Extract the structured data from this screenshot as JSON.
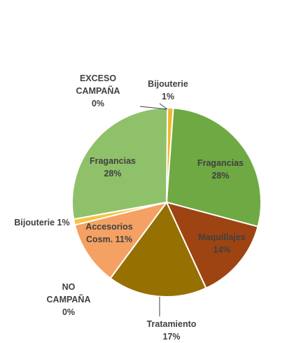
{
  "chart_data": {
    "type": "pie",
    "slices": [
      {
        "name": "Bijouterie",
        "value": 1,
        "label": [
          "Bijouterie",
          "1%"
        ],
        "color": "#F2B630",
        "label_color": "#404040"
      },
      {
        "name": "Fragancias",
        "value": 28,
        "label": [
          "Fragancias",
          "28%"
        ],
        "color": "#6EA944",
        "label_color": "#404040"
      },
      {
        "name": "Maquillajes",
        "value": 14,
        "label": [
          "Maquillajes",
          "14%"
        ],
        "color": "#9E4412",
        "label_color": "#404040"
      },
      {
        "name": "Tratamiento",
        "value": 17,
        "label": [
          "Tratamiento",
          "17%"
        ],
        "color": "#967000",
        "label_color": "#404040"
      },
      {
        "name": "NO CAMPAÑA",
        "value": 0,
        "label": [
          "NO",
          "CAMPAÑA",
          "0%"
        ],
        "color": "#B4C7E7",
        "label_color": "#404040"
      },
      {
        "name": "Accesorios Cosm.",
        "value": 11,
        "label": [
          "Accesorios",
          "Cosm. 11%"
        ],
        "color": "#F4A163",
        "label_color": "#404040"
      },
      {
        "name": "Bijouterie",
        "value": 1,
        "label": [
          "Bijouterie 1%"
        ],
        "color": "#F7C342",
        "label_color": "#404040"
      },
      {
        "name": "Fragancias",
        "value": 28,
        "label": [
          "Fragancias",
          "28%"
        ],
        "color": "#8FC16A",
        "label_color": "#404040"
      },
      {
        "name": "EXCESO CAMPAÑA",
        "value": 0,
        "label": [
          "EXCESO",
          "CAMPAÑA",
          "0%"
        ],
        "color": "#A5A5A5",
        "label_color": "#404040"
      }
    ]
  }
}
